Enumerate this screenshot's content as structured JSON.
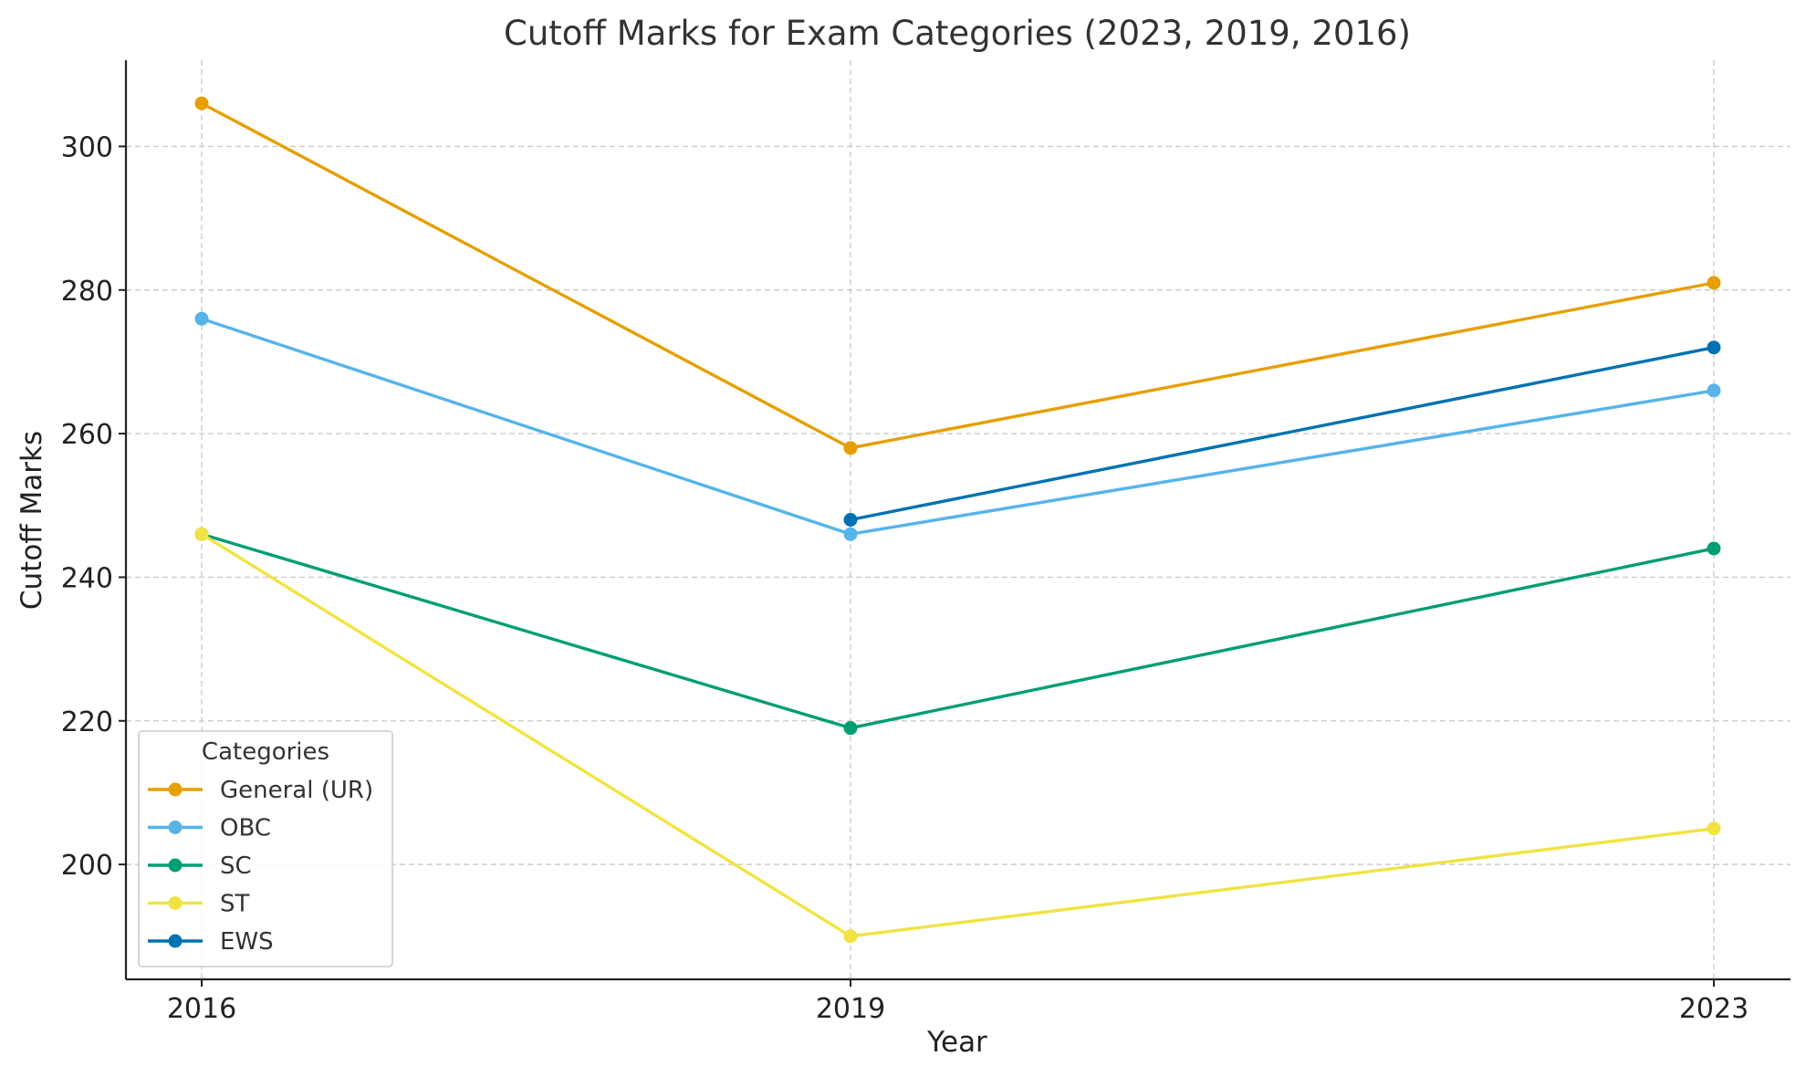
{
  "chart_data": {
    "type": "line",
    "title": "Cutoff Marks for Exam Categories (2023, 2019, 2016)",
    "xlabel": "Year",
    "ylabel": "Cutoff Marks",
    "x": [
      2016,
      2019,
      2023
    ],
    "x_tick_labels": [
      "2016",
      "2019",
      "2023"
    ],
    "ylim": [
      184,
      312
    ],
    "y_ticks": [
      200,
      220,
      240,
      260,
      280,
      300
    ],
    "y_tick_labels": [
      "200",
      "220",
      "240",
      "260",
      "280",
      "300"
    ],
    "grid": true,
    "legend": {
      "title": "Categories",
      "placement": "lower-left"
    },
    "series": [
      {
        "name": "General (UR)",
        "color": "#E69F00",
        "values": [
          306,
          258,
          281
        ]
      },
      {
        "name": "OBC",
        "color": "#56B4E9",
        "values": [
          276,
          246,
          266
        ]
      },
      {
        "name": "SC",
        "color": "#009E73",
        "values": [
          246,
          219,
          244
        ]
      },
      {
        "name": "ST",
        "color": "#F0E442",
        "values": [
          246,
          190,
          205
        ]
      },
      {
        "name": "EWS",
        "color": "#0072B2",
        "values": [
          null,
          248,
          272
        ]
      }
    ]
  }
}
